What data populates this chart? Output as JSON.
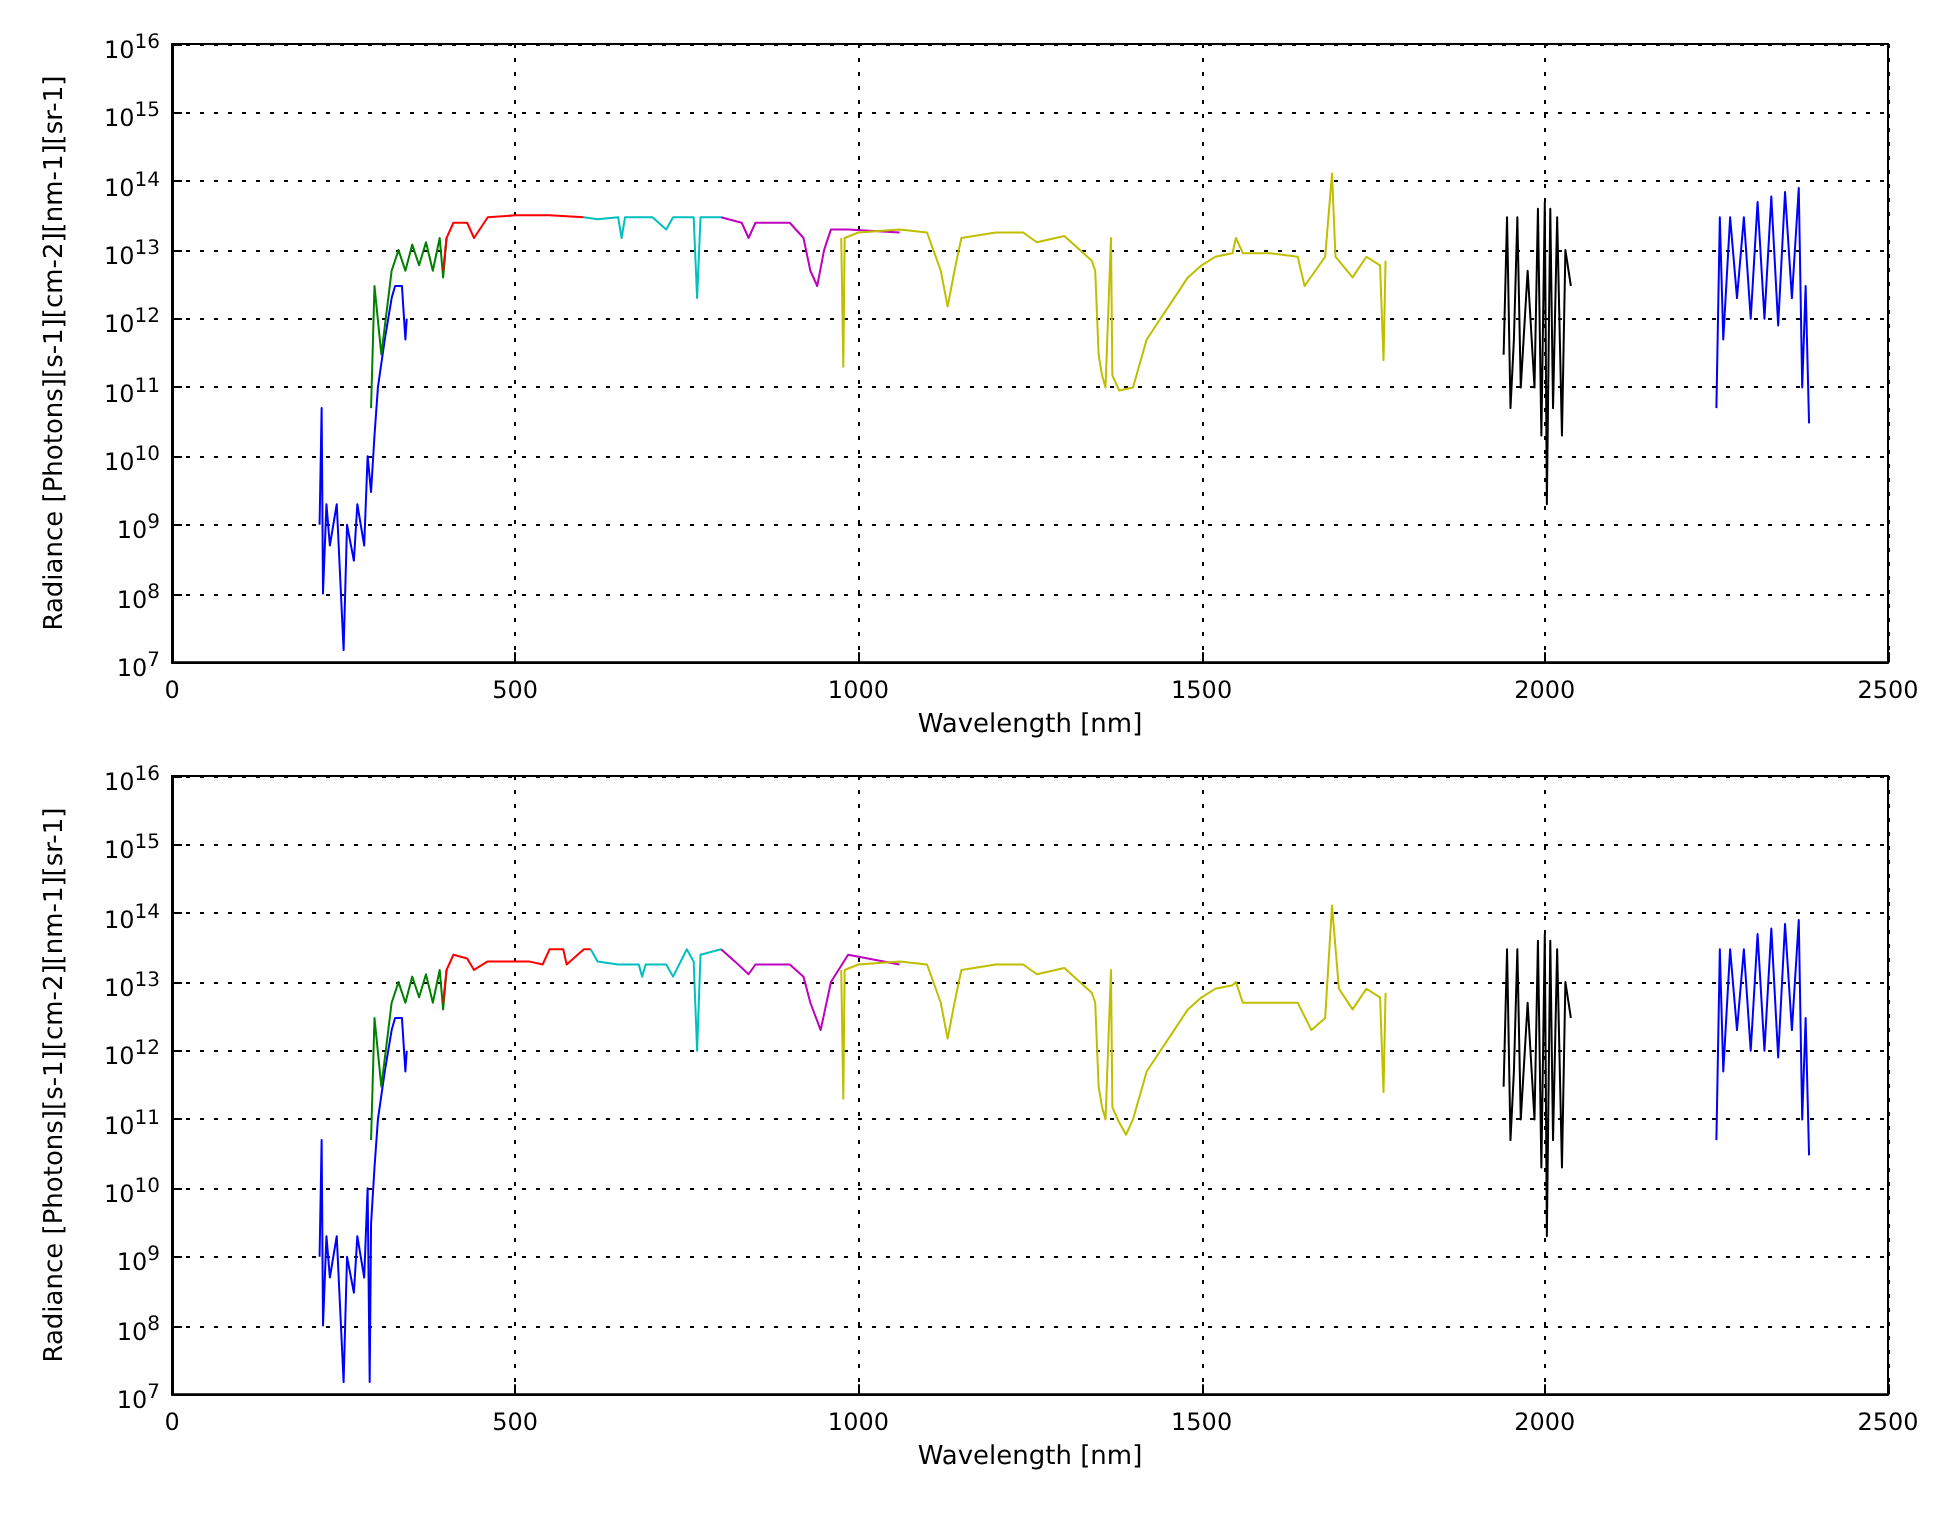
{
  "chart_data": [
    {
      "type": "line",
      "xlabel": "Wavelength [nm]",
      "ylabel": "Radiance [Photons][s-1][cm-2][nm-1][sr-1]",
      "log": "y",
      "grid": true,
      "marker": "none",
      "line_style": "solid",
      "xlim": [
        0,
        2500
      ],
      "xticks": [
        0,
        500,
        1000,
        1500,
        2000,
        2500
      ],
      "ylim": [
        10000000.0,
        1e+16
      ],
      "yticks": [
        {
          "value": 10000000.0,
          "label": "10$^{7}$"
        },
        {
          "value": 100000000.0,
          "label": "10$^{8}$"
        },
        {
          "value": 1000000000.0,
          "label": "10$^{9}$"
        },
        {
          "value": 10000000000.0,
          "label": "10$^{10}$"
        },
        {
          "value": 100000000000.0,
          "label": "10$^{11}$"
        },
        {
          "value": 1000000000000.0,
          "label": "10$^{12}$"
        },
        {
          "value": 10000000000000.0,
          "label": "10$^{13}$"
        },
        {
          "value": 100000000000000.0,
          "label": "10$^{14}$"
        },
        {
          "value": 1000000000000000.0,
          "label": "10$^{15}$"
        },
        {
          "value": 1e+16,
          "label": "10$^{16}$"
        }
      ],
      "series": [
        {
          "color": "#0000ff",
          "x": [
            215,
            218,
            220,
            225,
            230,
            240,
            250,
            255,
            265,
            270,
            280,
            285,
            290,
            295,
            300,
            310,
            320,
            325,
            335,
            340,
            342
          ],
          "values": [
            1000000000.0,
            50000000000.0,
            100000000.0,
            2000000000.0,
            500000000.0,
            2000000000.0,
            15000000.0,
            1000000000.0,
            300000000.0,
            2000000000.0,
            500000000.0,
            10000000000.0,
            3000000000.0,
            20000000000.0,
            100000000000.0,
            500000000000.0,
            2000000000000.0,
            3000000000000.0,
            3000000000000.0,
            500000000000.0,
            1000000000000.0
          ]
        },
        {
          "color": "#008000",
          "x": [
            290,
            295,
            305,
            320,
            330,
            340,
            350,
            360,
            370,
            380,
            390,
            395,
            400
          ],
          "values": [
            50000000000.0,
            3000000000000.0,
            300000000000.0,
            5000000000000.0,
            10000000000000.0,
            5000000000000.0,
            12000000000000.0,
            6000000000000.0,
            13000000000000.0,
            5000000000000.0,
            15000000000000.0,
            4000000000000.0,
            15000000000000.0
          ]
        },
        {
          "color": "#ff0000",
          "x": [
            395,
            400,
            410,
            430,
            440,
            460,
            500,
            550,
            600
          ],
          "values": [
            5000000000000.0,
            15000000000000.0,
            25000000000000.0,
            25000000000000.0,
            15000000000000.0,
            30000000000000.0,
            32000000000000.0,
            32000000000000.0,
            30000000000000.0
          ]
        },
        {
          "color": "#00bfbf",
          "x": [
            600,
            620,
            650,
            655,
            660,
            700,
            720,
            730,
            760,
            765,
            770,
            800
          ],
          "values": [
            30000000000000.0,
            28000000000000.0,
            30000000000000.0,
            15000000000000.0,
            30000000000000.0,
            30000000000000.0,
            20000000000000.0,
            30000000000000.0,
            30000000000000.0,
            2000000000000.0,
            30000000000000.0,
            30000000000000.0
          ]
        },
        {
          "color": "#bf00bf",
          "x": [
            800,
            830,
            840,
            850,
            900,
            920,
            930,
            940,
            950,
            960,
            985,
            1060
          ],
          "values": [
            30000000000000.0,
            25000000000000.0,
            15000000000000.0,
            25000000000000.0,
            25000000000000.0,
            15000000000000.0,
            5000000000000.0,
            3000000000000.0,
            10000000000000.0,
            20000000000000.0,
            20000000000000.0,
            18000000000000.0
          ]
        },
        {
          "color": "#bfbf00",
          "x": [
            975,
            978,
            980,
            1000,
            1060,
            1100,
            1120,
            1130,
            1140,
            1150,
            1200,
            1240,
            1260,
            1300,
            1340,
            1345,
            1350,
            1355,
            1360,
            1368,
            1370,
            1380,
            1400,
            1420,
            1440,
            1460,
            1480,
            1500,
            1520,
            1545,
            1550,
            1560,
            1600,
            1640,
            1650,
            1680,
            1690,
            1695,
            1720,
            1740,
            1760,
            1765,
            1768
          ],
          "values": [
            15000000000000.0,
            200000000000.0,
            15000000000000.0,
            18000000000000.0,
            20000000000000.0,
            18000000000000.0,
            5000000000000.0,
            1500000000000.0,
            5000000000000.0,
            15000000000000.0,
            18000000000000.0,
            18000000000000.0,
            13000000000000.0,
            16000000000000.0,
            7000000000000.0,
            5000000000000.0,
            300000000000.0,
            150000000000.0,
            100000000000.0,
            15000000000000.0,
            150000000000.0,
            90000000000.0,
            100000000000.0,
            500000000000.0,
            1000000000000.0,
            2000000000000.0,
            4000000000000.0,
            6000000000000.0,
            8000000000000.0,
            9000000000000.0,
            15000000000000.0,
            9000000000000.0,
            9000000000000.0,
            8000000000000.0,
            3000000000000.0,
            8000000000000.0,
            130000000000000.0,
            8000000000000.0,
            4000000000000.0,
            8000000000000.0,
            6000000000000.0,
            250000000000.0,
            7000000000000.0
          ]
        },
        {
          "color": "#000000",
          "x": [
            1940,
            1945,
            1950,
            1955,
            1960,
            1965,
            1975,
            1985,
            1990,
            1995,
            2000,
            2003,
            2008,
            2012,
            2018,
            2025,
            2030,
            2038
          ],
          "values": [
            300000000000.0,
            30000000000000.0,
            50000000000.0,
            500000000000.0,
            30000000000000.0,
            100000000000.0,
            5000000000000.0,
            100000000000.0,
            40000000000000.0,
            20000000000.0,
            50000000000000.0,
            2000000000.0,
            40000000000000.0,
            50000000000.0,
            30000000000000.0,
            20000000000.0,
            10000000000000.0,
            3000000000000.0
          ]
        },
        {
          "color": "#0000ff",
          "x": [
            2250,
            2255,
            2260,
            2270,
            2280,
            2290,
            2300,
            2310,
            2320,
            2330,
            2340,
            2350,
            2360,
            2370,
            2375,
            2380,
            2385
          ],
          "values": [
            50000000000.0,
            30000000000000.0,
            500000000000.0,
            30000000000000.0,
            2000000000000.0,
            30000000000000.0,
            1000000000000.0,
            50000000000000.0,
            1000000000000.0,
            60000000000000.0,
            800000000000.0,
            70000000000000.0,
            2000000000000.0,
            80000000000000.0,
            100000000000.0,
            3000000000000.0,
            30000000000.0
          ]
        }
      ]
    },
    {
      "type": "line",
      "xlabel": "Wavelength [nm]",
      "ylabel": "Radiance [Photons][s-1][cm-2][nm-1][sr-1]",
      "log": "y",
      "grid": true,
      "marker": "none",
      "line_style": "solid",
      "xlim": [
        0,
        2500
      ],
      "xticks": [
        0,
        500,
        1000,
        1500,
        2000,
        2500
      ],
      "ylim": [
        10000000.0,
        1e+16
      ],
      "yticks": [
        {
          "value": 10000000.0,
          "label": "10$^{7}$"
        },
        {
          "value": 100000000.0,
          "label": "10$^{8}$"
        },
        {
          "value": 1000000000.0,
          "label": "10$^{9}$"
        },
        {
          "value": 10000000000.0,
          "label": "10$^{10}$"
        },
        {
          "value": 100000000000.0,
          "label": "10$^{11}$"
        },
        {
          "value": 1000000000000.0,
          "label": "10$^{12}$"
        },
        {
          "value": 10000000000000.0,
          "label": "10$^{13}$"
        },
        {
          "value": 100000000000000.0,
          "label": "10$^{14}$"
        },
        {
          "value": 1000000000000000.0,
          "label": "10$^{15}$"
        },
        {
          "value": 1e+16,
          "label": "10$^{16}$"
        }
      ],
      "series": [
        {
          "color": "#0000ff",
          "x": [
            215,
            218,
            220,
            225,
            230,
            240,
            250,
            255,
            265,
            270,
            280,
            285,
            288,
            290,
            295,
            300,
            310,
            320,
            325,
            335,
            340,
            342
          ],
          "values": [
            1000000000.0,
            50000000000.0,
            100000000.0,
            2000000000.0,
            500000000.0,
            2000000000.0,
            15000000.0,
            1000000000.0,
            300000000.0,
            2000000000.0,
            500000000.0,
            10000000000.0,
            15000000.0,
            3000000000.0,
            20000000000.0,
            100000000000.0,
            500000000000.0,
            2000000000000.0,
            3000000000000.0,
            3000000000000.0,
            500000000000.0,
            1000000000000.0
          ]
        },
        {
          "color": "#008000",
          "x": [
            290,
            295,
            305,
            320,
            330,
            340,
            350,
            360,
            370,
            380,
            390,
            395,
            400
          ],
          "values": [
            50000000000.0,
            3000000000000.0,
            300000000000.0,
            5000000000000.0,
            10000000000000.0,
            5000000000000.0,
            12000000000000.0,
            6000000000000.0,
            13000000000000.0,
            5000000000000.0,
            15000000000000.0,
            4000000000000.0,
            15000000000000.0
          ]
        },
        {
          "color": "#ff0000",
          "x": [
            395,
            400,
            410,
            430,
            440,
            460,
            520,
            540,
            550,
            570,
            575,
            600,
            610
          ],
          "values": [
            5000000000000.0,
            15000000000000.0,
            25000000000000.0,
            22000000000000.0,
            15000000000000.0,
            20000000000000.0,
            20000000000000.0,
            18000000000000.0,
            30000000000000.0,
            30000000000000.0,
            18000000000000.0,
            30000000000000.0,
            30000000000000.0
          ]
        },
        {
          "color": "#00bfbf",
          "x": [
            610,
            620,
            650,
            680,
            685,
            690,
            720,
            730,
            750,
            760,
            765,
            770,
            800
          ],
          "values": [
            30000000000000.0,
            20000000000000.0,
            18000000000000.0,
            18000000000000.0,
            12000000000000.0,
            18000000000000.0,
            18000000000000.0,
            12000000000000.0,
            30000000000000.0,
            20000000000000.0,
            1000000000000.0,
            25000000000000.0,
            30000000000000.0
          ]
        },
        {
          "color": "#bf00bf",
          "x": [
            800,
            820,
            840,
            850,
            900,
            920,
            930,
            945,
            960,
            985,
            1060
          ],
          "values": [
            30000000000000.0,
            20000000000000.0,
            13000000000000.0,
            18000000000000.0,
            18000000000000.0,
            12000000000000.0,
            5000000000000.0,
            2000000000000.0,
            10000000000000.0,
            25000000000000.0,
            18000000000000.0
          ]
        },
        {
          "color": "#bfbf00",
          "x": [
            975,
            978,
            980,
            1000,
            1060,
            1100,
            1120,
            1130,
            1140,
            1150,
            1200,
            1240,
            1260,
            1300,
            1340,
            1345,
            1350,
            1355,
            1360,
            1368,
            1370,
            1380,
            1390,
            1400,
            1420,
            1440,
            1460,
            1480,
            1500,
            1520,
            1545,
            1550,
            1560,
            1600,
            1640,
            1660,
            1680,
            1690,
            1700,
            1720,
            1740,
            1760,
            1765,
            1768
          ],
          "values": [
            15000000000000.0,
            200000000000.0,
            15000000000000.0,
            18000000000000.0,
            20000000000000.0,
            18000000000000.0,
            5000000000000.0,
            1500000000000.0,
            5000000000000.0,
            15000000000000.0,
            18000000000000.0,
            18000000000000.0,
            13000000000000.0,
            16000000000000.0,
            7000000000000.0,
            5000000000000.0,
            300000000000.0,
            150000000000.0,
            100000000000.0,
            15000000000000.0,
            150000000000.0,
            90000000000.0,
            60000000000.0,
            100000000000.0,
            500000000000.0,
            1000000000000.0,
            2000000000000.0,
            4000000000000.0,
            6000000000000.0,
            8000000000000.0,
            9000000000000.0,
            10000000000000.0,
            5000000000000.0,
            5000000000000.0,
            5000000000000.0,
            2000000000000.0,
            3000000000000.0,
            130000000000000.0,
            8000000000000.0,
            4000000000000.0,
            8000000000000.0,
            6000000000000.0,
            250000000000.0,
            7000000000000.0
          ]
        },
        {
          "color": "#000000",
          "x": [
            1940,
            1945,
            1950,
            1955,
            1960,
            1965,
            1975,
            1985,
            1990,
            1995,
            2000,
            2003,
            2008,
            2012,
            2018,
            2025,
            2030,
            2038
          ],
          "values": [
            300000000000.0,
            30000000000000.0,
            50000000000.0,
            500000000000.0,
            30000000000000.0,
            100000000000.0,
            5000000000000.0,
            100000000000.0,
            40000000000000.0,
            20000000000.0,
            50000000000000.0,
            2000000000.0,
            40000000000000.0,
            50000000000.0,
            30000000000000.0,
            20000000000.0,
            10000000000000.0,
            3000000000000.0
          ]
        },
        {
          "color": "#0000ff",
          "x": [
            2250,
            2255,
            2260,
            2270,
            2280,
            2290,
            2300,
            2310,
            2320,
            2330,
            2340,
            2350,
            2360,
            2370,
            2375,
            2380,
            2385
          ],
          "values": [
            50000000000.0,
            30000000000000.0,
            500000000000.0,
            30000000000000.0,
            2000000000000.0,
            30000000000000.0,
            1000000000000.0,
            50000000000000.0,
            1000000000000.0,
            60000000000000.0,
            800000000000.0,
            70000000000000.0,
            2000000000000.0,
            80000000000000.0,
            100000000000.0,
            3000000000000.0,
            30000000000.0
          ]
        }
      ]
    }
  ]
}
